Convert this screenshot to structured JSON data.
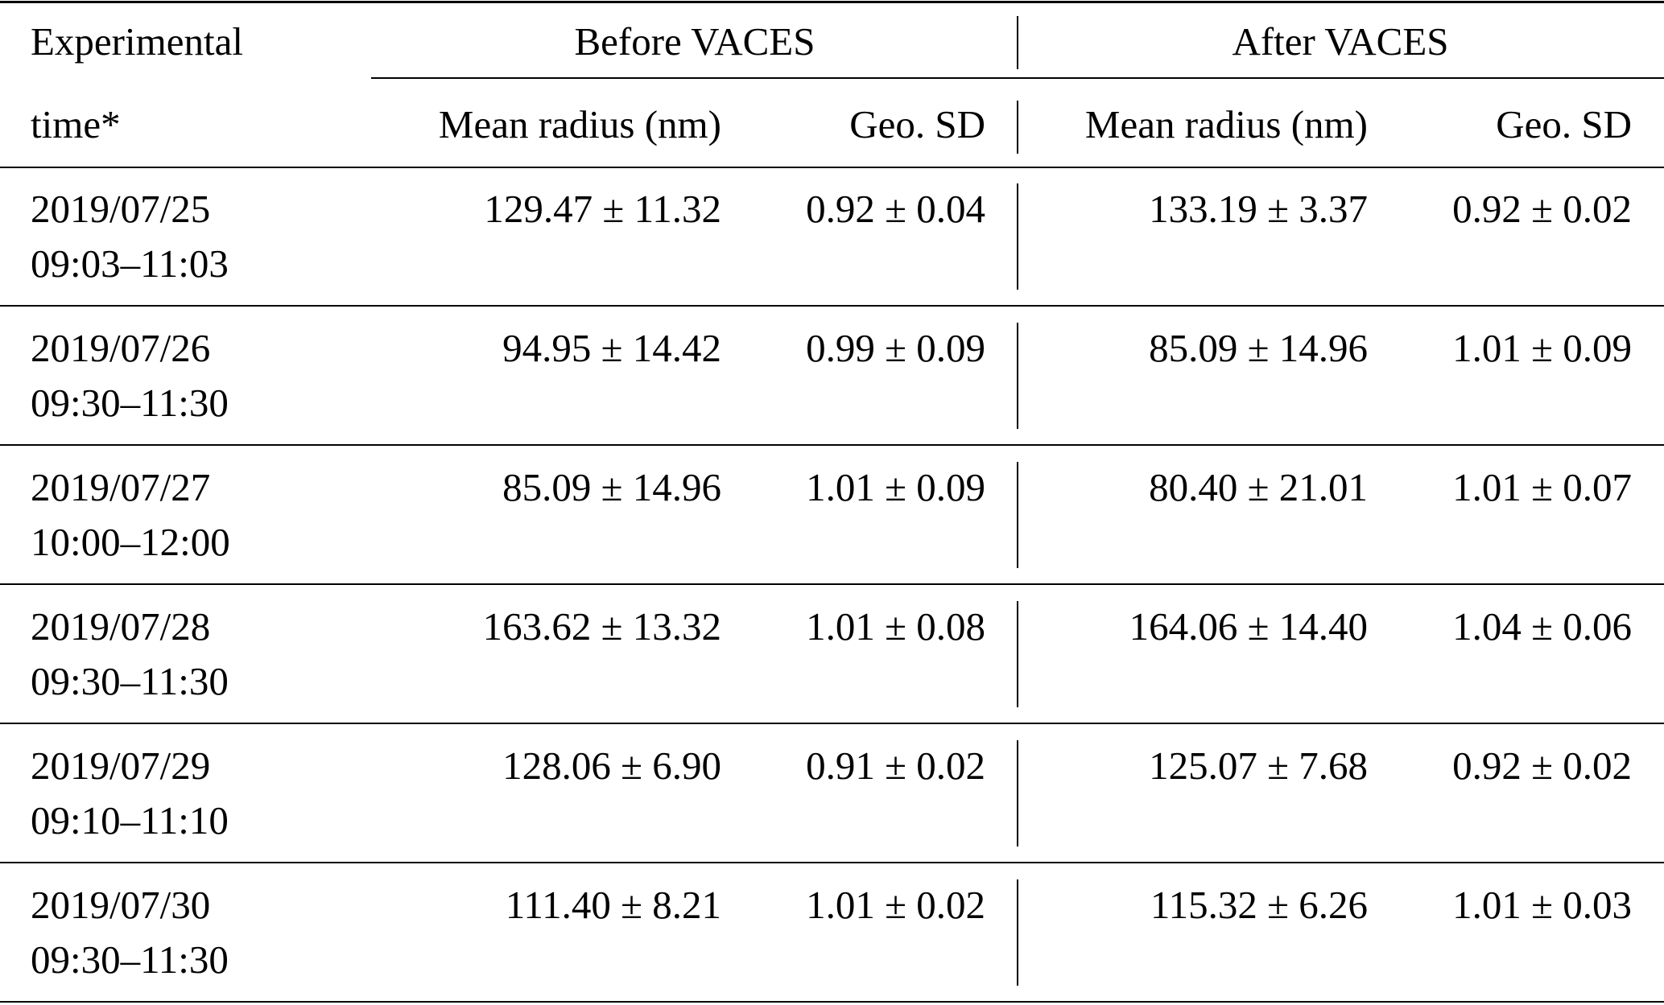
{
  "table": {
    "header": {
      "col1_line1": "Experimental",
      "col1_line2": "time*",
      "group_before": "Before VACES",
      "group_after": "After VACES",
      "before_mean": "Mean radius (nm)",
      "before_sd": "Geo. SD",
      "after_mean": "Mean radius (nm)",
      "after_sd": "Geo. SD"
    },
    "rows": [
      {
        "date": "2019/07/25",
        "time": "09:03–11:03",
        "before_mean": "129.47 ± 11.32",
        "before_sd": "0.92 ± 0.04",
        "after_mean": "133.19 ± 3.37",
        "after_sd": "0.92 ± 0.02"
      },
      {
        "date": "2019/07/26",
        "time": "09:30–11:30",
        "before_mean": "94.95 ± 14.42",
        "before_sd": "0.99 ± 0.09",
        "after_mean": "85.09 ± 14.96",
        "after_sd": "1.01 ± 0.09"
      },
      {
        "date": "2019/07/27",
        "time": "10:00–12:00",
        "before_mean": "85.09 ± 14.96",
        "before_sd": "1.01 ± 0.09",
        "after_mean": "80.40 ± 21.01",
        "after_sd": "1.01 ± 0.07"
      },
      {
        "date": "2019/07/28",
        "time": "09:30–11:30",
        "before_mean": "163.62 ± 13.32",
        "before_sd": "1.01 ± 0.08",
        "after_mean": "164.06 ± 14.40",
        "after_sd": "1.04 ± 0.06"
      },
      {
        "date": "2019/07/29",
        "time": "09:10–11:10",
        "before_mean": "128.06 ± 6.90",
        "before_sd": "0.91 ± 0.02",
        "after_mean": "125.07 ± 7.68",
        "after_sd": "0.92 ± 0.02"
      },
      {
        "date": "2019/07/30",
        "time": "09:30–11:30",
        "before_mean": "111.40 ± 8.21",
        "before_sd": "1.01 ± 0.02",
        "after_mean": "115.32 ± 6.26",
        "after_sd": "1.01 ± 0.03"
      }
    ]
  }
}
